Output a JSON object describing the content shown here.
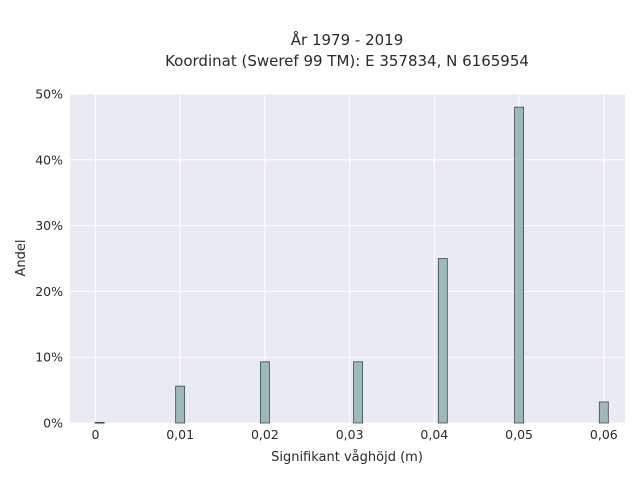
{
  "chart_data": {
    "type": "bar",
    "title": [
      "År 1979 - 2019",
      "Koordinat (Sweref 99 TM): E 357834, N 6165954"
    ],
    "xlabel": "Signifikant våghöjd (m)",
    "ylabel": "Andel",
    "xlim": [
      -0.003,
      0.0625
    ],
    "ylim": [
      0,
      50
    ],
    "x_ticks": [
      0,
      0.01,
      0.02,
      0.03,
      0.04,
      0.05,
      0.06
    ],
    "x_tick_labels": [
      "0",
      "0,01",
      "0,02",
      "0,03",
      "0,04",
      "0,05",
      "0,06"
    ],
    "y_ticks": [
      0,
      10,
      20,
      30,
      40,
      50
    ],
    "y_tick_labels": [
      "0%",
      "10%",
      "20%",
      "30%",
      "40%",
      "50%"
    ],
    "x": [
      0.0005,
      0.01,
      0.02,
      0.031,
      0.041,
      0.05,
      0.06
    ],
    "values": [
      0.1,
      5.6,
      9.3,
      9.3,
      25.0,
      48.0,
      3.2
    ],
    "grid": true,
    "colors": {
      "background": "#eaeaf2",
      "grid": "#ffffff",
      "bar_fill": "#9fb8b8",
      "bar_edge": "#3d4a4a"
    }
  }
}
